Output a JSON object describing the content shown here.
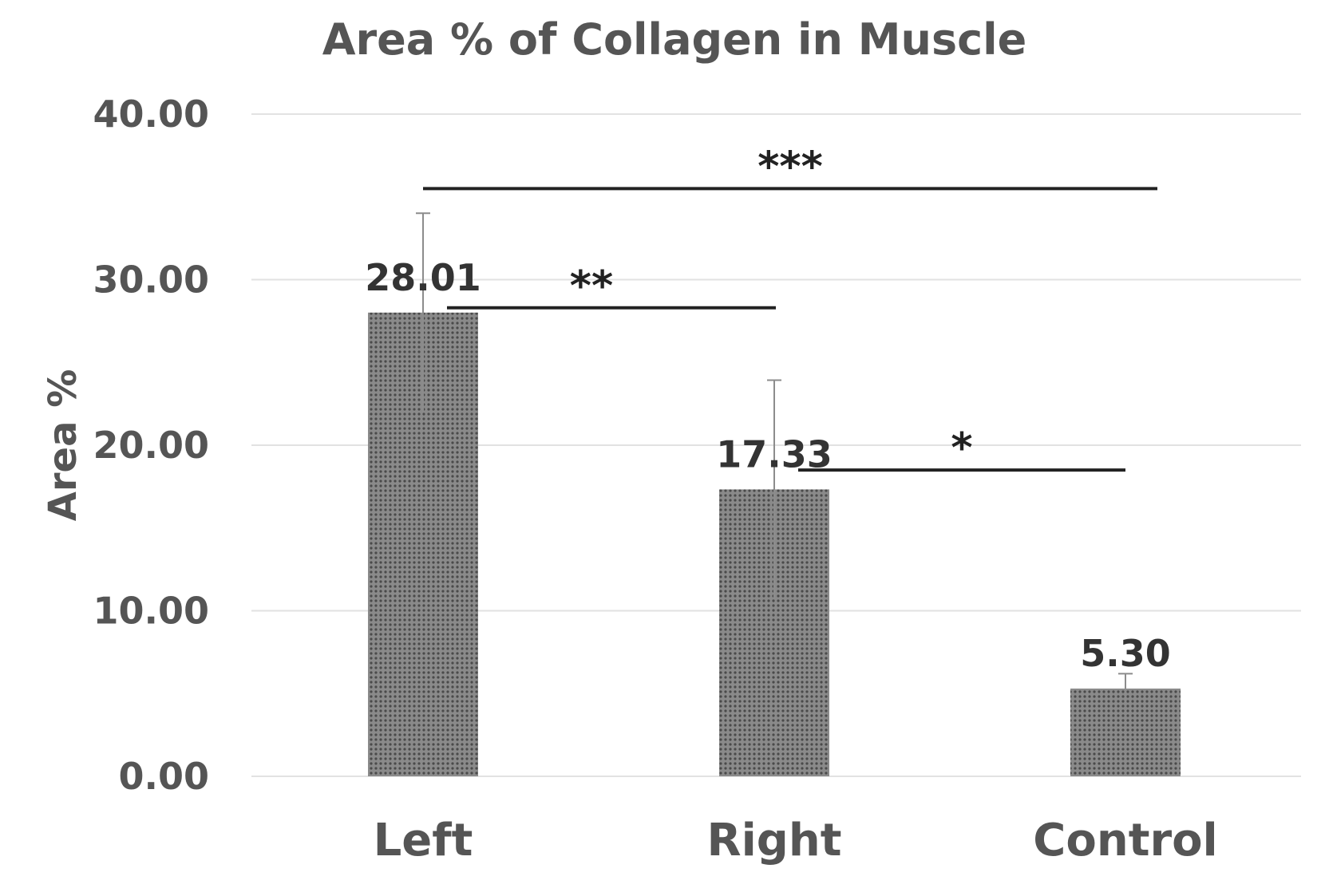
{
  "chart_data": {
    "type": "bar",
    "title": "Area % of Collagen in Muscle",
    "ylabel": "Area %",
    "xlabel": "",
    "ylim": [
      0,
      40
    ],
    "yticks": [
      "0.00",
      "10.00",
      "20.00",
      "30.00",
      "40.00"
    ],
    "grid": true,
    "categories": [
      "Left",
      "Right",
      "Control"
    ],
    "values": [
      28.01,
      17.33,
      5.3
    ],
    "value_labels": [
      "28.01",
      "17.33",
      "5.30"
    ],
    "error": [
      6.0,
      6.6,
      0.9
    ],
    "bar_color": "#7a7a7a",
    "significance": [
      {
        "from": "Left",
        "to": "Control",
        "label": "***",
        "y": 35.5
      },
      {
        "from": "Left",
        "to": "Right",
        "label": "**",
        "y": 28.3
      },
      {
        "from": "Right",
        "to": "Control",
        "label": "*",
        "y": 18.5
      }
    ]
  }
}
